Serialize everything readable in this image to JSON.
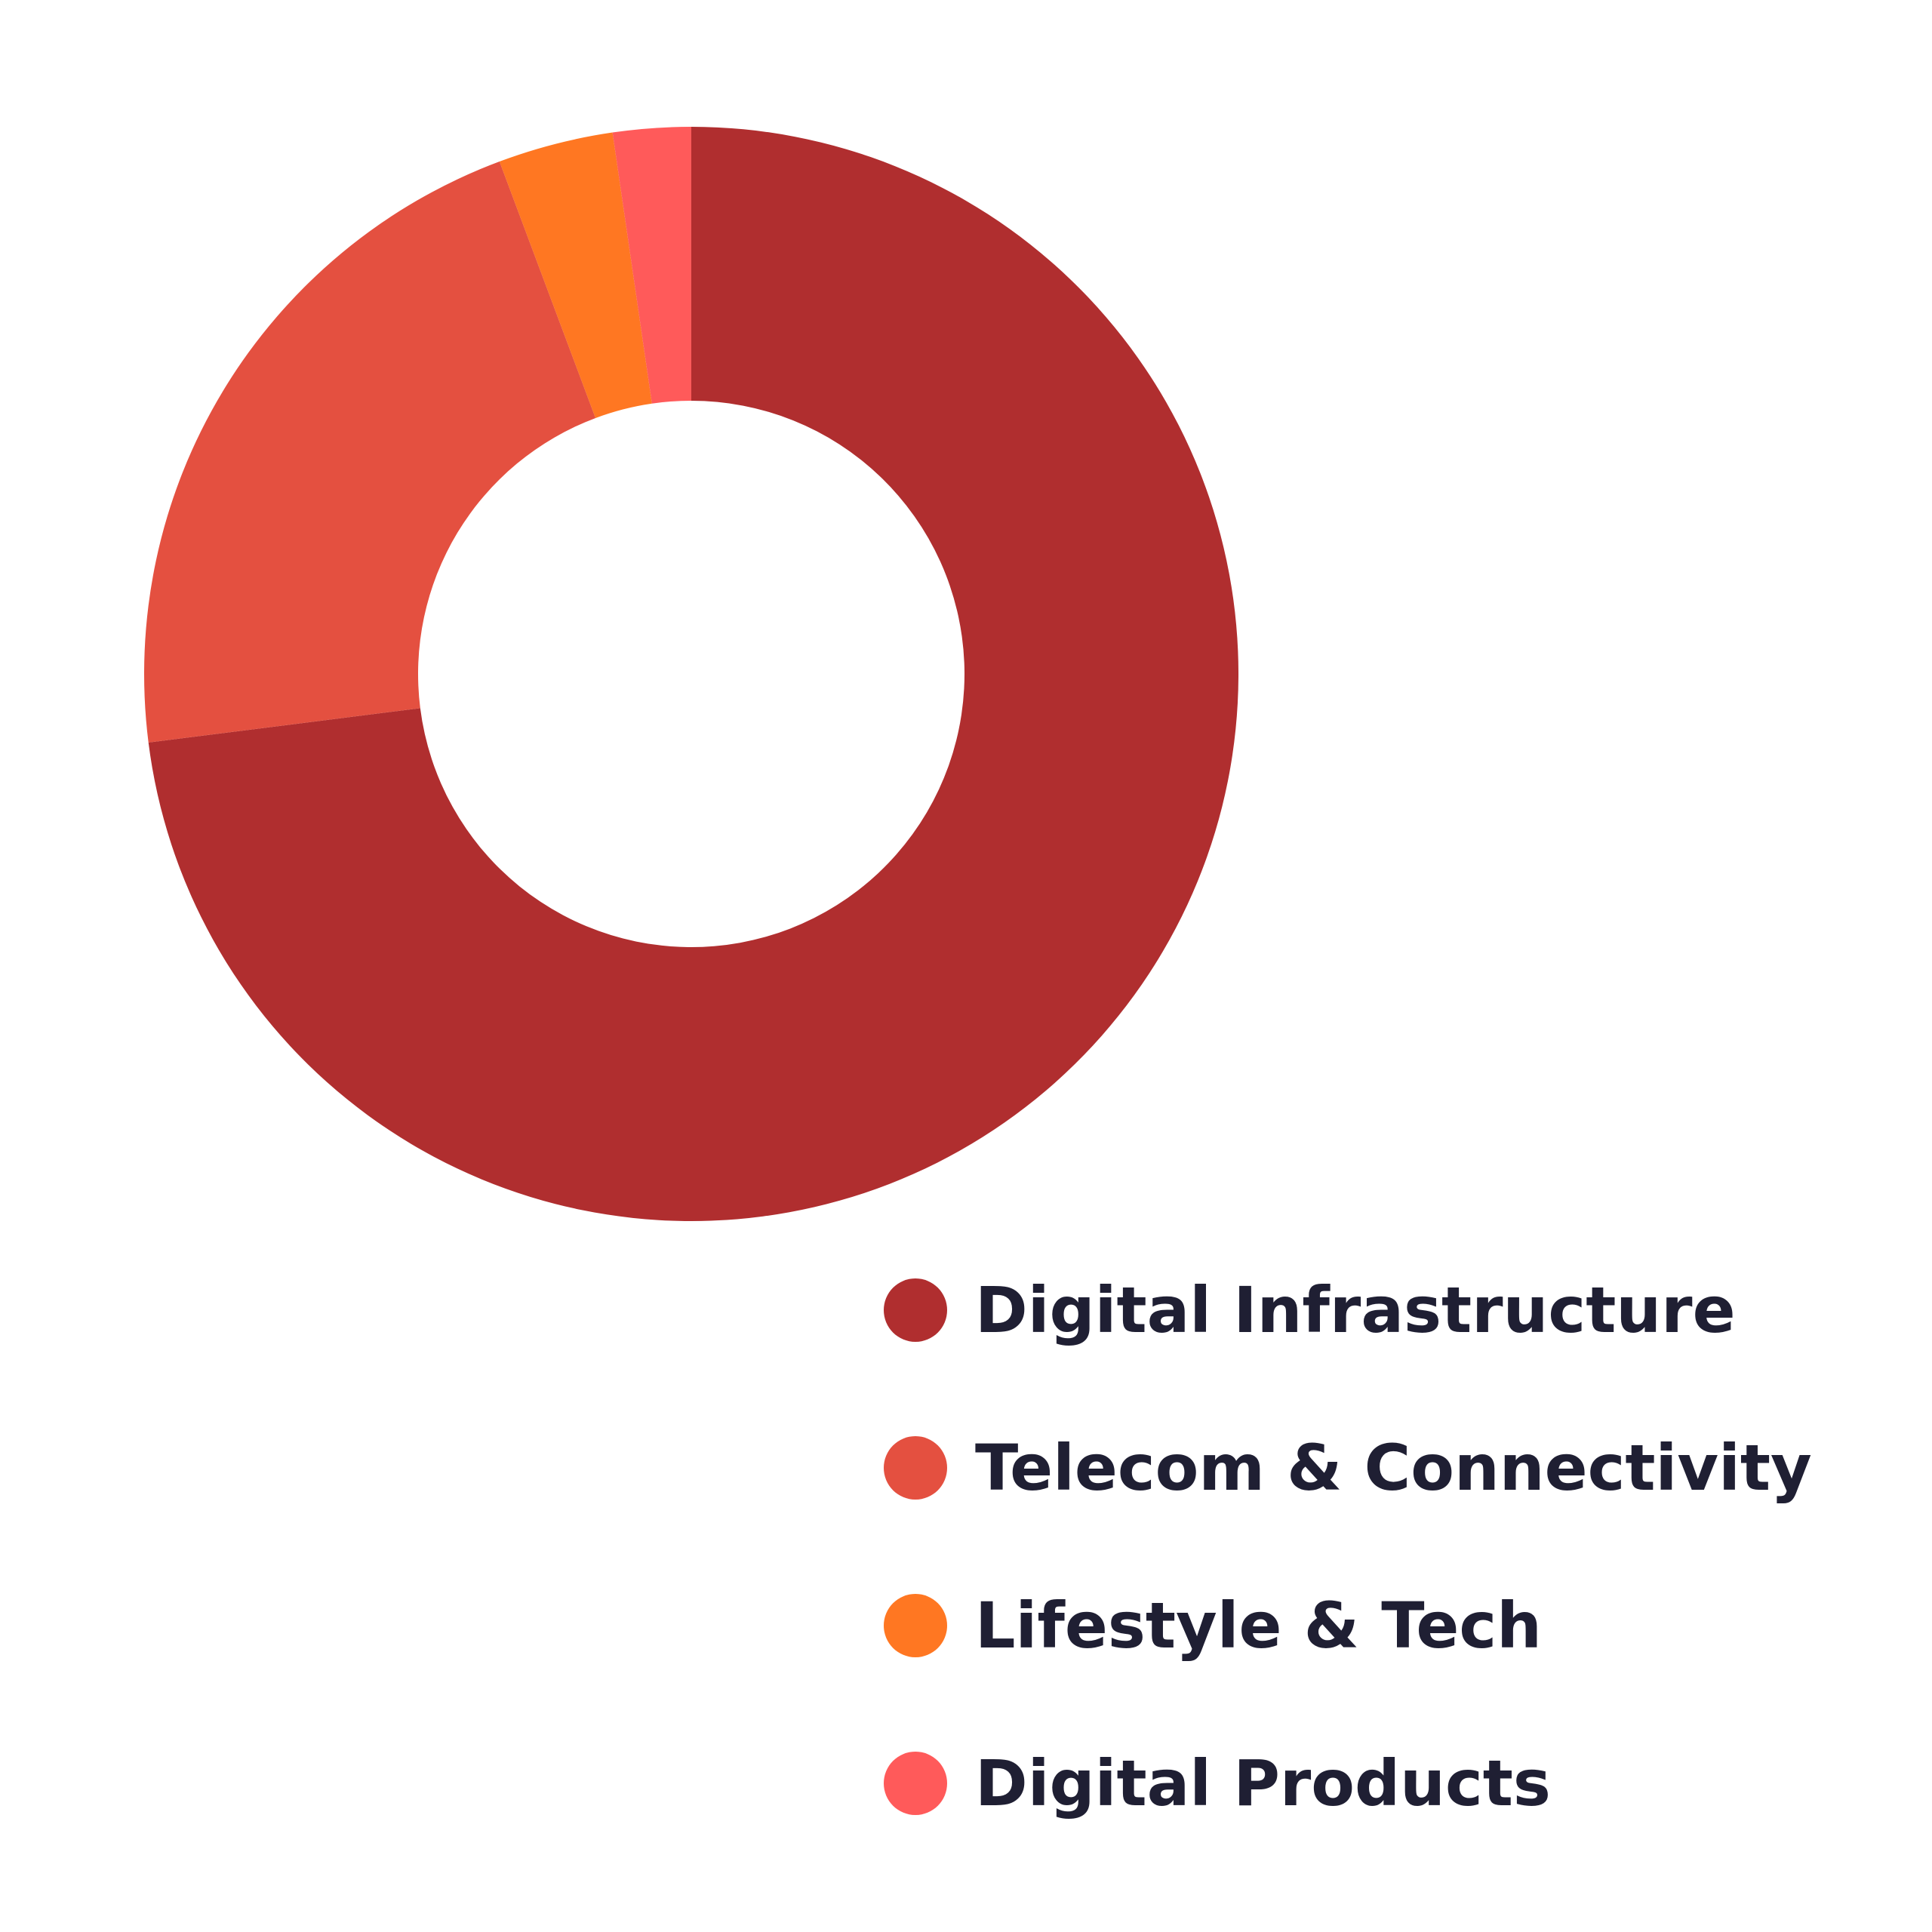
{
  "chart_data": {
    "type": "pie",
    "variant": "donut",
    "title": "",
    "categories": [
      "Digital Infrastructure",
      "Telecom & Connectivity",
      "Lifestyle & Tech",
      "Digital Products"
    ],
    "values": [
      73.0,
      21.3,
      3.4,
      2.3
    ],
    "unit": "%",
    "colors": [
      "#b02e2f",
      "#e45040",
      "#ff7722",
      "#ff5a5a"
    ],
    "start_angle": "12 o'clock",
    "direction": "clockwise",
    "legend_position": "bottom-right",
    "legend_text_color": "#1f1f33"
  }
}
